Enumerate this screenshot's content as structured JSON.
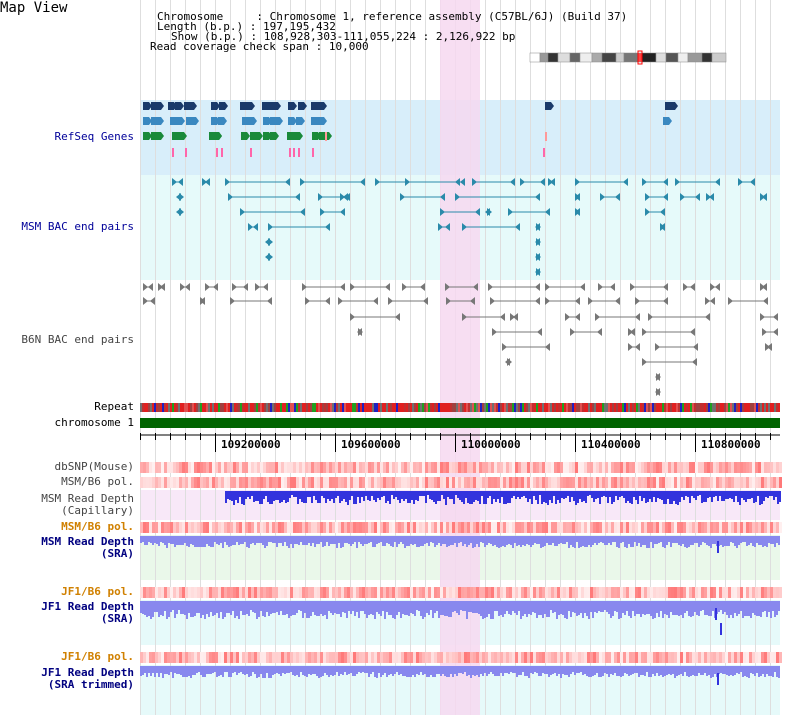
{
  "title": "Map View",
  "info": {
    "chromosome_key": "Chromosome",
    "chromosome_val": "Chromosome 1, reference assembly (C57BL/6J) (Build 37)",
    "length_key": "Length (b.p.)",
    "length_val": "197,195,432",
    "show_key": "Show (b.p.)",
    "show_val": "108,928,303-111,055,224 : 2,126,922 bp",
    "coverage_key": "Read coverage check span",
    "coverage_val": "10,000"
  },
  "tracks": {
    "refseq": "RefSeq Genes",
    "msm_bac": "MSM BAC end pairs",
    "b6n_bac": "B6N BAC end pairs",
    "repeat": "Repeat",
    "chromosome": "chromosome 1",
    "dbsnp": "dbSNP(Mouse)",
    "msm_b6_pol_1": "MSM/B6 pol.",
    "msm_read_depth_cap_1": "MSM Read Depth",
    "msm_read_depth_cap_2": "(Capillary)",
    "msm_b6_pol_2": "MSM/B6 pol.",
    "msm_read_depth_sra_1": "MSM Read Depth",
    "msm_read_depth_sra_2": "(SRA)",
    "jf1_b6_pol_1": "JF1/B6 pol.",
    "jf1_read_depth_1": "JF1 Read Depth",
    "jf1_read_depth_2": "(SRA)",
    "jf1_b6_pol_2": "JF1/B6 pol.",
    "jf1_trim_1": "JF1 Read Depth",
    "jf1_trim_2": "(SRA trimmed)"
  },
  "axis": {
    "ticks": [
      "109200000",
      "109600000",
      "110000000",
      "110400000",
      "110800000"
    ]
  },
  "colors": {
    "refseq_bg": "#d8eefa",
    "bac_bg": "#e6fafa",
    "highlight": "#f6d8f0",
    "msm_pair": "#2a8aaa",
    "b6n_pair": "#777777",
    "chromosome_bar": "#006400",
    "depth_blue": "#3333dd",
    "depth_light": "#8888ee"
  }
}
